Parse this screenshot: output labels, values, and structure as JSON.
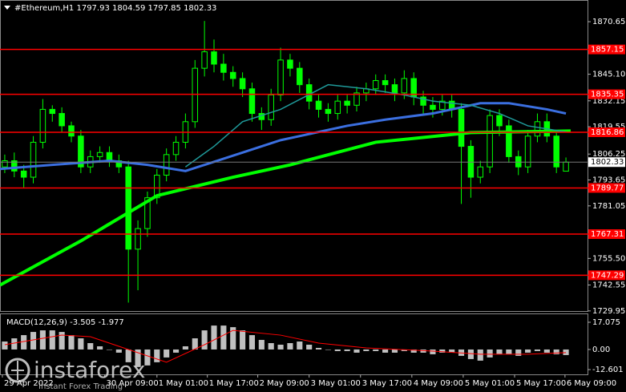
{
  "chart_data": {
    "type": "candlestick",
    "title": "#Ethereum,H1  1797.93 1804.59 1797.85 1802.33",
    "up_color": "#00ff00",
    "down_color": "#00ff00",
    "xlim": [
      -0.5,
      59.5
    ],
    "ylim": [
      1729.5,
      1881.2
    ],
    "yticks": [
      1870.65,
      {
        "value": 1845.1,
        "label": "1845.10"
      },
      1832.15,
      1819.55,
      1806.25,
      1793.65,
      1781.05,
      {
        "value": 1755.5,
        "label": "1755.50"
      },
      1742.55,
      1729.95
    ],
    "xticks": [
      {
        "value": -0.25,
        "label": "29 Apr 2022"
      },
      {
        "value": 10.5,
        "label": "30 Apr 09:00"
      },
      {
        "value": 16,
        "label": "1 May 01:00"
      },
      {
        "value": 21.3,
        "label": "1 May 17:00"
      },
      {
        "value": 26.6,
        "label": "2 May 09:00"
      },
      {
        "value": 32,
        "label": "3 May 01:00"
      },
      {
        "value": 37.4,
        "label": "3 May 17:00"
      },
      {
        "value": 42.8,
        "label": "4 May 09:00"
      },
      {
        "value": 48.2,
        "label": "5 May 01:00"
      },
      {
        "value": 53.6,
        "label": "5 May 17:00"
      },
      {
        "value": 58.9,
        "label": "6 May 09:00"
      }
    ],
    "open": [
      1800,
      1803,
      1798,
      1795,
      1812,
      1828,
      1826,
      1820,
      1815,
      1800,
      1805,
      1807,
      1803,
      1800,
      1760,
      1770,
      1785,
      1796,
      1806,
      1812,
      1822,
      1848,
      1856,
      1850,
      1846,
      1843,
      1838,
      1826,
      1823,
      1835,
      1852,
      1848,
      1840,
      1832,
      1828,
      1826,
      1832,
      1830,
      1836,
      1838,
      1842,
      1840,
      1836,
      1843,
      1834,
      1830,
      1828,
      1832,
      1828,
      1810,
      1795,
      1800,
      1825,
      1820,
      1805,
      1800,
      1815,
      1822,
      1815,
      1797.93
    ],
    "high": [
      1806,
      1807,
      1801,
      1815,
      1833,
      1830,
      1829,
      1822,
      1818,
      1808,
      1810,
      1810,
      1806,
      1803,
      1774,
      1788,
      1799,
      1809,
      1815,
      1826,
      1852,
      1871,
      1862,
      1855,
      1849,
      1846,
      1841,
      1829,
      1838,
      1858,
      1855,
      1851,
      1843,
      1835,
      1831,
      1835,
      1835,
      1839,
      1841,
      1845,
      1845,
      1843,
      1847,
      1846,
      1837,
      1834,
      1835,
      1835,
      1831,
      1813,
      1803,
      1828,
      1828,
      1823,
      1808,
      1818,
      1826,
      1826,
      1818,
      1804.59
    ],
    "low": [
      1797,
      1795,
      1790,
      1792,
      1809,
      1822,
      1817,
      1812,
      1797,
      1797,
      1802,
      1800,
      1797,
      1734,
      1740,
      1766,
      1782,
      1793,
      1803,
      1809,
      1819,
      1844,
      1846,
      1842,
      1839,
      1834,
      1822,
      1818,
      1820,
      1832,
      1844,
      1836,
      1828,
      1824,
      1822,
      1823,
      1826,
      1827,
      1832,
      1835,
      1836,
      1832,
      1833,
      1830,
      1826,
      1824,
      1825,
      1824,
      1782,
      1785,
      1792,
      1797,
      1815,
      1802,
      1796,
      1797,
      1812,
      1812,
      1797,
      1797.85
    ],
    "close": [
      1803,
      1798,
      1795,
      1812,
      1828,
      1826,
      1820,
      1815,
      1800,
      1805,
      1807,
      1803,
      1800,
      1760,
      1770,
      1785,
      1796,
      1806,
      1812,
      1822,
      1848,
      1856,
      1850,
      1846,
      1843,
      1838,
      1826,
      1823,
      1835,
      1852,
      1848,
      1840,
      1832,
      1828,
      1826,
      1832,
      1830,
      1836,
      1838,
      1842,
      1840,
      1836,
      1843,
      1834,
      1830,
      1828,
      1832,
      1828,
      1810,
      1795,
      1800,
      1825,
      1820,
      1805,
      1800,
      1815,
      1822,
      1815,
      1800,
      1802.33
    ],
    "lines": [
      {
        "color": "#00ff00",
        "width": 4,
        "x": [
          -0.5,
          8,
          16,
          24,
          30,
          39,
          49,
          59.5
        ],
        "values": [
          1742.5,
          1764,
          1786,
          1795,
          1801,
          1812,
          1816.7,
          1817.5
        ]
      },
      {
        "color": "#3b6fe0",
        "width": 3,
        "x": [
          -0.5,
          5,
          11,
          15,
          19,
          25,
          29,
          36,
          40,
          45,
          50,
          53,
          57,
          59
        ],
        "values": [
          1799,
          1801,
          1803,
          1801,
          1798,
          1807,
          1813,
          1820,
          1823,
          1826,
          1831,
          1831,
          1828,
          1826
        ]
      },
      {
        "color": "#1f9a9a",
        "width": 1.5,
        "x": [
          19,
          22,
          25,
          29,
          34,
          38,
          42,
          45,
          49,
          52,
          55,
          59
        ],
        "values": [
          1800,
          1810,
          1822,
          1828,
          1840,
          1838,
          1835,
          1832,
          1830,
          1826,
          1820,
          1817
        ]
      }
    ],
    "levels": [
      1857.15,
      1835.35,
      1816.86,
      1789.77,
      1767.31,
      1747.29
    ],
    "level_color": "#ff0000",
    "current_price": 1802.33,
    "macd": {
      "title": "MACD(12,26,9) -3.505 -1.977",
      "ylim": [
        -15.6,
        22.1
      ],
      "yticks": [
        17.075,
        {
          "value": 0,
          "label": "0.00"
        },
        -12.601
      ],
      "color": "#c0c0c0",
      "values": [
        5,
        7,
        9,
        11,
        12,
        12,
        11,
        9,
        7,
        4,
        2,
        0,
        -2,
        -8,
        -11,
        -10,
        -8,
        -5,
        -2,
        2,
        7,
        12,
        15,
        15,
        14,
        12,
        9,
        6,
        4,
        3,
        4,
        5,
        3,
        1,
        0,
        -1,
        -1,
        -2,
        -1,
        -1,
        -2,
        -2,
        -1,
        -2,
        -2,
        -3,
        -2,
        -2,
        -4,
        -6,
        -7,
        -5,
        -3,
        -3,
        -4,
        -2,
        -1,
        -2,
        -3,
        -3.505
      ],
      "signal": {
        "color": "#ff0000",
        "x": [
          0,
          3,
          6,
          9,
          13,
          17,
          21,
          24,
          29,
          33,
          38,
          45,
          50,
          55,
          59
        ],
        "values": [
          3,
          6,
          9,
          8,
          0,
          -8,
          3,
          12,
          9,
          4,
          1,
          -1,
          -3,
          -3,
          -1.977
        ]
      }
    },
    "brand": {
      "name": "instaforex",
      "tagline": "Instant Forex Trading"
    }
  }
}
